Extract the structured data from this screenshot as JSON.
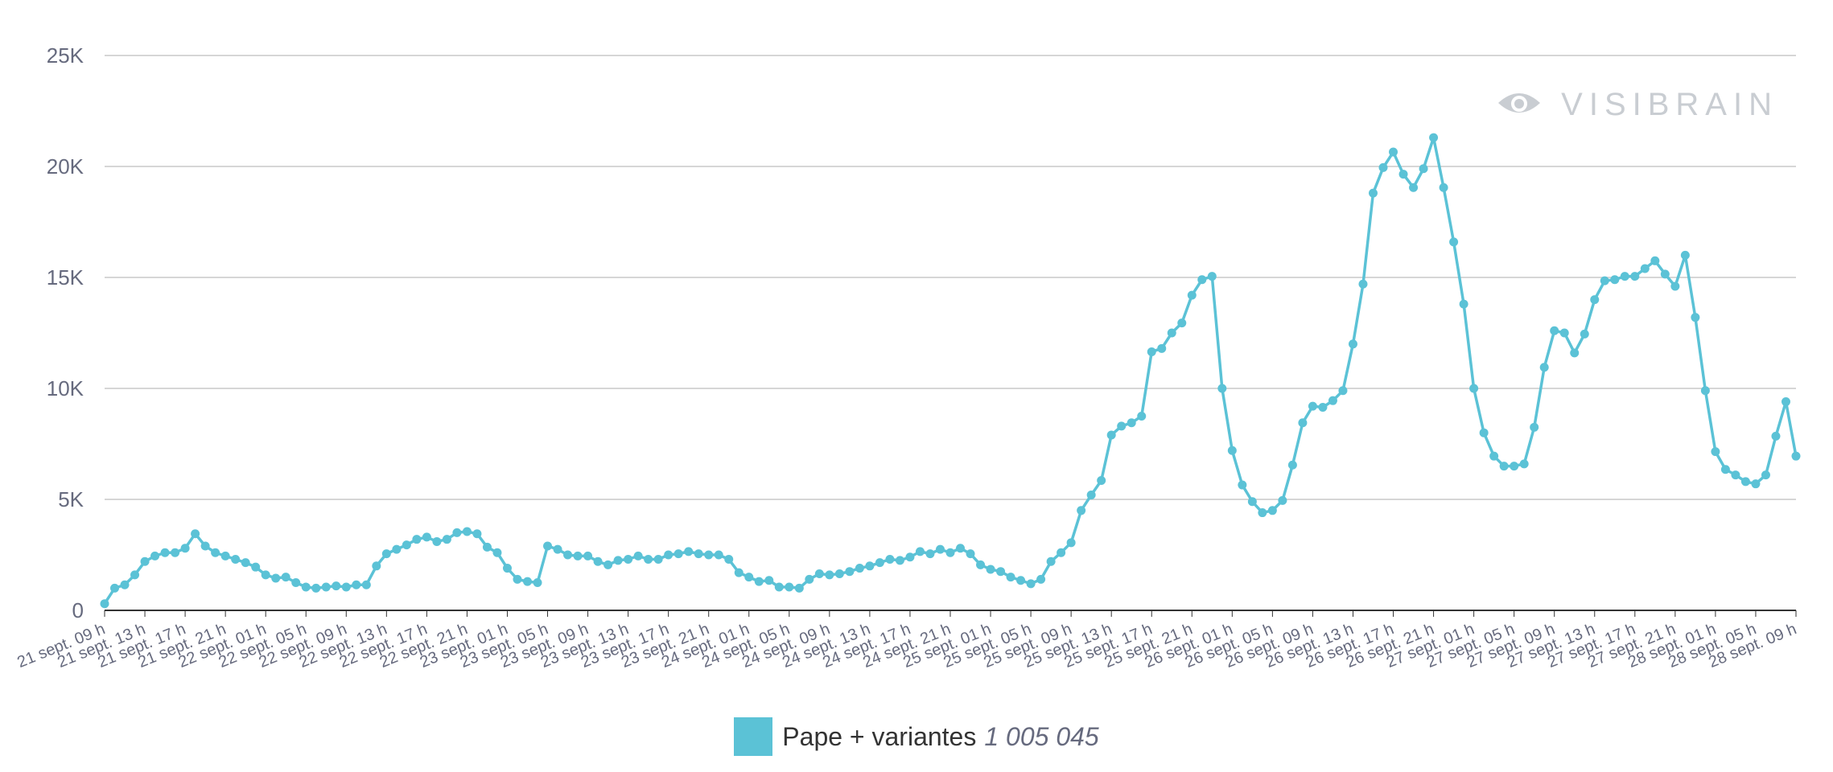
{
  "brand": {
    "name": "VISIBRAIN",
    "icon": "eye-icon"
  },
  "colors": {
    "series": "#5bc2d6",
    "grid": "#c9c9c9",
    "axis": "#333333",
    "tick": "#666a7e",
    "brand": "#c9cdd2"
  },
  "chart_data": {
    "type": "line",
    "grid": true,
    "ylim": [
      0,
      25000
    ],
    "y_ticks": [
      {
        "value": 0,
        "label": "0"
      },
      {
        "value": 5000,
        "label": "5K"
      },
      {
        "value": 10000,
        "label": "10K"
      },
      {
        "value": 15000,
        "label": "15K"
      },
      {
        "value": 20000,
        "label": "20K"
      },
      {
        "value": 25000,
        "label": "25K"
      }
    ],
    "x_tick_labels": [
      "21 sept. 09 h",
      "21 sept. 13 h",
      "21 sept. 17 h",
      "21 sept. 21 h",
      "22 sept. 01 h",
      "22 sept. 05 h",
      "22 sept. 09 h",
      "22 sept. 13 h",
      "22 sept. 17 h",
      "22 sept. 21 h",
      "23 sept. 01 h",
      "23 sept. 05 h",
      "23 sept. 09 h",
      "23 sept. 13 h",
      "23 sept. 17 h",
      "23 sept. 21 h",
      "24 sept. 01 h",
      "24 sept. 05 h",
      "24 sept. 09 h",
      "24 sept. 13 h",
      "24 sept. 17 h",
      "24 sept. 21 h",
      "25 sept. 01 h",
      "25 sept. 05 h",
      "25 sept. 09 h",
      "25 sept. 13 h",
      "25 sept. 17 h",
      "25 sept. 21 h",
      "26 sept. 01 h",
      "26 sept. 05 h",
      "26 sept. 09 h",
      "26 sept. 13 h",
      "26 sept. 17 h",
      "26 sept. 21 h",
      "27 sept. 01 h",
      "27 sept. 05 h",
      "27 sept. 09 h",
      "27 sept. 13 h",
      "27 sept. 17 h",
      "27 sept. 21 h",
      "28 sept. 01 h",
      "28 sept. 05 h",
      "28 sept. 09 h"
    ],
    "x_start": "21 sept. 09 h",
    "x_interval": "1 h",
    "legend": {
      "position": "bottom-center"
    },
    "series": [
      {
        "name": "Pape + variantes",
        "total": "1 005 045",
        "values": [
          300,
          1000,
          1150,
          1600,
          2200,
          2450,
          2600,
          2600,
          2800,
          3450,
          2900,
          2600,
          2450,
          2300,
          2150,
          1950,
          1600,
          1450,
          1500,
          1250,
          1050,
          1000,
          1050,
          1100,
          1050,
          1150,
          1150,
          2000,
          2550,
          2750,
          2950,
          3200,
          3300,
          3100,
          3200,
          3500,
          3550,
          3450,
          2850,
          2600,
          1900,
          1400,
          1300,
          1250,
          2900,
          2750,
          2500,
          2450,
          2450,
          2200,
          2050,
          2250,
          2300,
          2450,
          2300,
          2300,
          2500,
          2550,
          2650,
          2550,
          2500,
          2500,
          2300,
          1700,
          1500,
          1300,
          1350,
          1050,
          1050,
          1000,
          1400,
          1650,
          1600,
          1650,
          1750,
          1900,
          2000,
          2150,
          2300,
          2250,
          2400,
          2650,
          2550,
          2750,
          2600,
          2800,
          2550,
          2050,
          1850,
          1750,
          1500,
          1350,
          1200,
          1400,
          2200,
          2600,
          3050,
          4500,
          5200,
          5850,
          7900,
          8300,
          8450,
          8750,
          11650,
          11800,
          12500,
          12950,
          14200,
          14900,
          15050,
          10000,
          7200,
          5650,
          4900,
          4400,
          4500,
          4950,
          6550,
          8450,
          9200,
          9150,
          9450,
          9900,
          12000,
          14700,
          18800,
          19950,
          20650,
          19650,
          19050,
          19900,
          21300,
          19050,
          16600,
          13800,
          10000,
          8000,
          6950,
          6500,
          6500,
          6600,
          8250,
          10950,
          12600,
          12500,
          11600,
          12450,
          14000,
          14850,
          14900,
          15050,
          15050,
          15400,
          15750,
          15150,
          14600,
          16000,
          13200,
          9900,
          7150,
          6350,
          6100,
          5800,
          5700,
          6100,
          7850,
          9400,
          6950
        ]
      }
    ]
  }
}
